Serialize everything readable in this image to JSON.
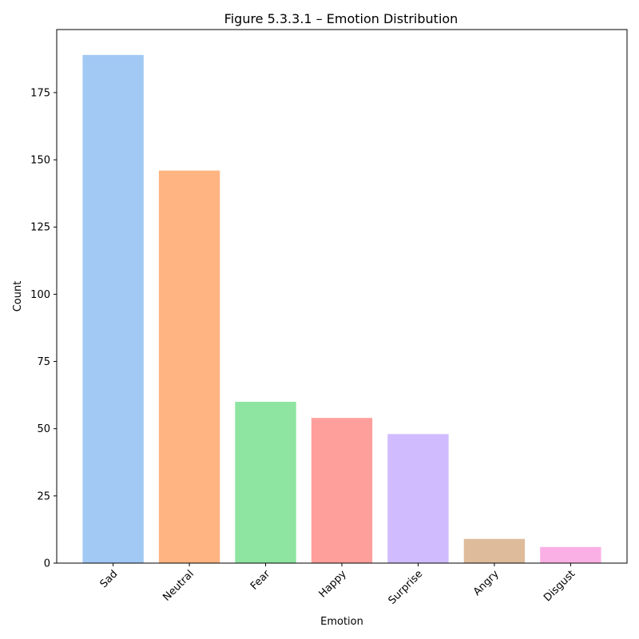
{
  "chart_data": {
    "type": "bar",
    "title": "Figure 5.3.3.1 – Emotion Distribution",
    "xlabel": "Emotion",
    "ylabel": "Count",
    "categories": [
      "Sad",
      "Neutral",
      "Fear",
      "Happy",
      "Surprise",
      "Angry",
      "Disgust"
    ],
    "values": [
      189,
      146,
      60,
      54,
      48,
      9,
      6
    ],
    "colors": [
      "#a1c9f4",
      "#ffb482",
      "#8de5a1",
      "#ff9f9b",
      "#d0bbff",
      "#debb9b",
      "#fab0e4"
    ],
    "ylim": [
      0,
      198.45
    ],
    "yticks": [
      0,
      25,
      50,
      75,
      100,
      125,
      150,
      175
    ],
    "grid": false,
    "legend": "none"
  }
}
